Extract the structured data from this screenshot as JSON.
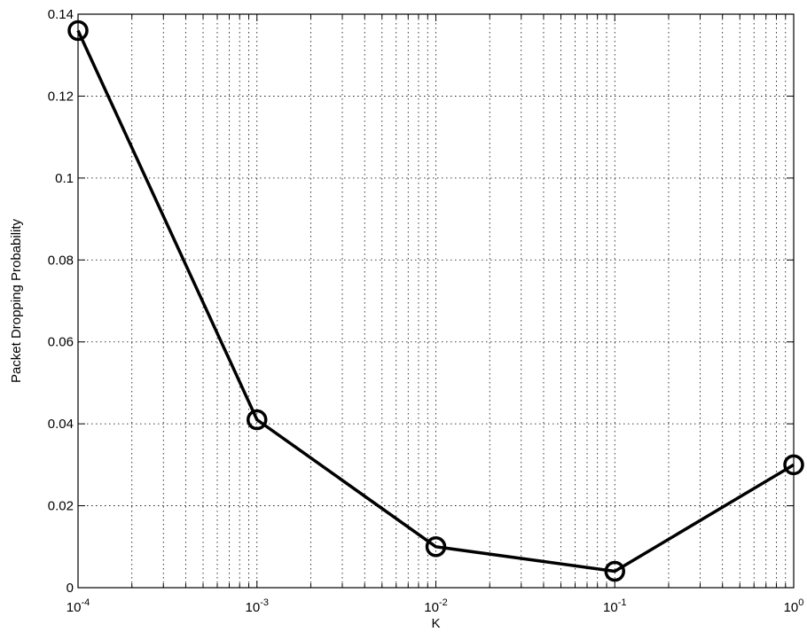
{
  "chart_data": {
    "type": "line",
    "xscale": "log",
    "xlabel": "K",
    "ylabel": "Packet Dropping Probability",
    "xlim": [
      0.0001,
      1
    ],
    "ylim": [
      0,
      0.14
    ],
    "grid": true,
    "x_ticks": [
      {
        "value": 0.0001,
        "base": "10",
        "exp": "-4"
      },
      {
        "value": 0.001,
        "base": "10",
        "exp": "-3"
      },
      {
        "value": 0.01,
        "base": "10",
        "exp": "-2"
      },
      {
        "value": 0.1,
        "base": "10",
        "exp": "-1"
      },
      {
        "value": 1,
        "base": "10",
        "exp": "0"
      }
    ],
    "y_ticks": [
      {
        "value": 0,
        "label": "0"
      },
      {
        "value": 0.02,
        "label": "0.02"
      },
      {
        "value": 0.04,
        "label": "0.04"
      },
      {
        "value": 0.06,
        "label": "0.06"
      },
      {
        "value": 0.08,
        "label": "0.08"
      },
      {
        "value": 0.1,
        "label": "0.1"
      },
      {
        "value": 0.12,
        "label": "0.12"
      },
      {
        "value": 0.14,
        "label": "0.14"
      }
    ],
    "series": [
      {
        "marker": "circle",
        "color": "#000000",
        "x": [
          0.0001,
          0.001,
          0.01,
          0.1,
          1
        ],
        "y": [
          0.136,
          0.041,
          0.01,
          0.004,
          0.03
        ]
      }
    ]
  }
}
